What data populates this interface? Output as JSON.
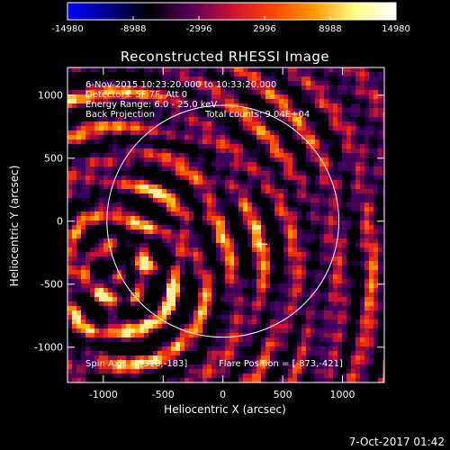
{
  "colorbar": {
    "ticks": [
      "-14980",
      "-8988",
      "-2996",
      "2996",
      "8988",
      "14980"
    ],
    "gradient": [
      "#0000ff",
      "#000088",
      "#000000",
      "#550055",
      "#cc1133",
      "#ff4400",
      "#ff9900",
      "#ffff88",
      "#ffffff"
    ]
  },
  "chart_data": {
    "type": "heatmap",
    "title": "Reconstructed RHESSI Image",
    "xlabel": "Heliocentric X (arcsec)",
    "ylabel": "Heliocentric Y (arcsec)",
    "xlim": [
      -1300,
      1350
    ],
    "ylim": [
      -1280,
      1220
    ],
    "xticks": [
      -1000,
      -500,
      0,
      500,
      1000
    ],
    "yticks": [
      1000,
      500,
      0,
      -500,
      -1000
    ],
    "xtick_labels": [
      "-1000",
      "-500",
      "0",
      "500",
      "1000"
    ],
    "ytick_labels": [
      "1000",
      "500",
      "0",
      "-500",
      "-1000"
    ],
    "value_range": [
      -14980,
      14980
    ],
    "solar_limb": {
      "center_x": 0,
      "center_y": 0,
      "radius": 970
    },
    "marker": {
      "x": 318,
      "y": -183,
      "symbol": "+"
    },
    "annotations": {
      "line1": "6-Nov-2015 10:23:20.000 to 10:33:20.000",
      "line2": "Detectors: 5F 7F, Att 0",
      "line3": "Energy Range: 6.0 - 25.0 keV",
      "line4_a": "Back Projection",
      "line4_b": "Total counts: 9.04E+04",
      "bottom_left": "Spin Axis = [318,-183]",
      "bottom_right": "Flare Position = [-873,-421]"
    }
  },
  "timestamp": "7-Oct-2017 01:42"
}
